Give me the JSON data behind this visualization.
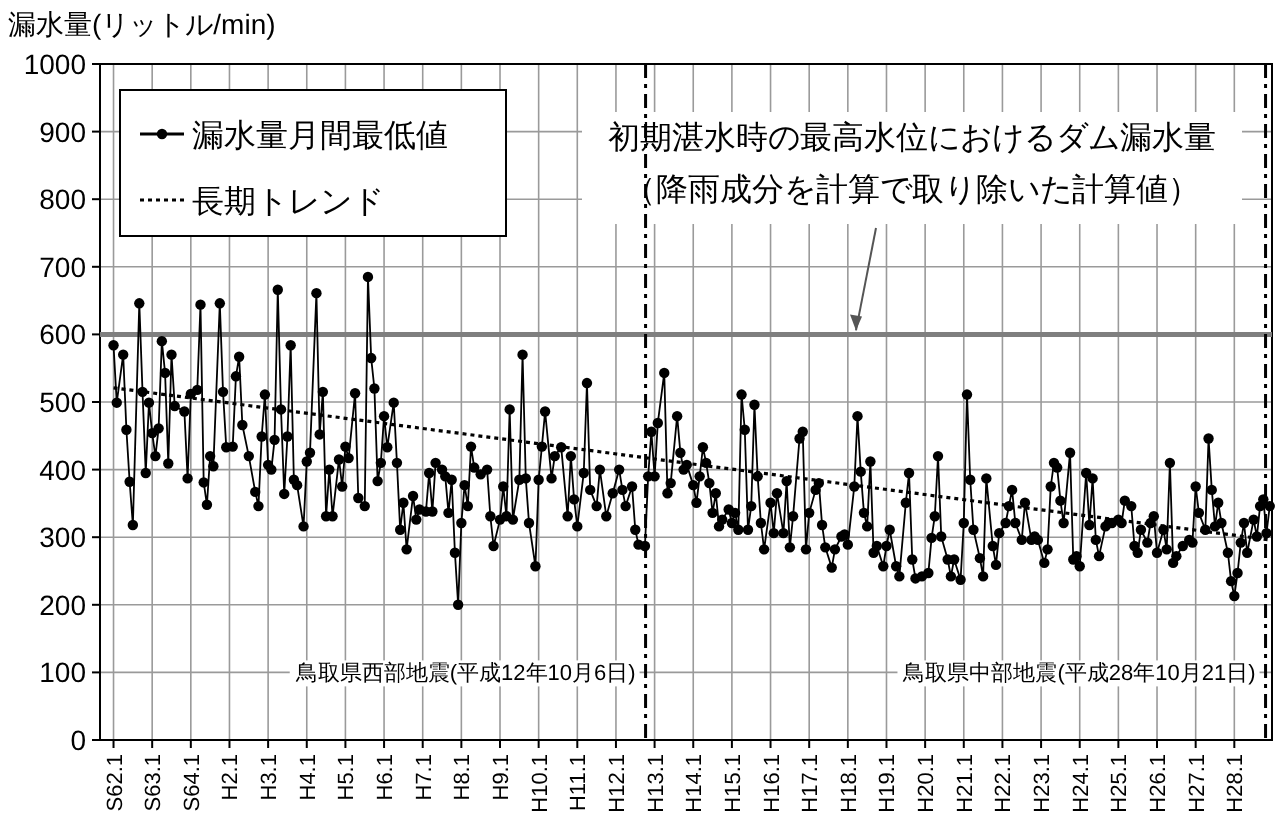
{
  "chart_data": {
    "type": "line",
    "ylabel": "漏水量(リットル/min)",
    "ylim": [
      0,
      1000
    ],
    "yticks": [
      0,
      100,
      200,
      300,
      400,
      500,
      600,
      700,
      800,
      900,
      1000
    ],
    "categories": [
      "S62.1",
      null,
      null,
      null,
      null,
      null,
      null,
      null,
      null,
      null,
      null,
      null,
      "S63.1",
      null,
      null,
      null,
      null,
      null,
      null,
      null,
      null,
      null,
      null,
      null,
      "S64.1",
      null,
      null,
      null,
      null,
      null,
      null,
      null,
      null,
      null,
      null,
      null,
      "H2.1",
      null,
      null,
      null,
      null,
      null,
      null,
      null,
      null,
      null,
      null,
      null,
      "H3.1",
      null,
      null,
      null,
      null,
      null,
      null,
      null,
      null,
      null,
      null,
      null,
      "H4.1",
      null,
      null,
      null,
      null,
      null,
      null,
      null,
      null,
      null,
      null,
      null,
      "H5.1",
      null,
      null,
      null,
      null,
      null,
      null,
      null,
      null,
      null,
      null,
      null,
      "H6.1",
      null,
      null,
      null,
      null,
      null,
      null,
      null,
      null,
      null,
      null,
      null,
      "H7.1",
      null,
      null,
      null,
      null,
      null,
      null,
      null,
      null,
      null,
      null,
      null,
      "H8.1",
      null,
      null,
      null,
      null,
      null,
      null,
      null,
      null,
      null,
      null,
      null,
      "H9.1",
      null,
      null,
      null,
      null,
      null,
      null,
      null,
      null,
      null,
      null,
      null,
      "H10.1",
      null,
      null,
      null,
      null,
      null,
      null,
      null,
      null,
      null,
      null,
      null,
      "H11.1",
      null,
      null,
      null,
      null,
      null,
      null,
      null,
      null,
      null,
      null,
      null,
      "H12.1",
      null,
      null,
      null,
      null,
      null,
      null,
      null,
      null,
      null,
      null,
      null,
      "H13.1",
      null,
      null,
      null,
      null,
      null,
      null,
      null,
      null,
      null,
      null,
      null,
      "H14.1",
      null,
      null,
      null,
      null,
      null,
      null,
      null,
      null,
      null,
      null,
      null,
      "H15.1",
      null,
      null,
      null,
      null,
      null,
      null,
      null,
      null,
      null,
      null,
      null,
      "H16.1",
      null,
      null,
      null,
      null,
      null,
      null,
      null,
      null,
      null,
      null,
      null,
      "H17.1",
      null,
      null,
      null,
      null,
      null,
      null,
      null,
      null,
      null,
      null,
      null,
      "H18.1",
      null,
      null,
      null,
      null,
      null,
      null,
      null,
      null,
      null,
      null,
      null,
      "H19.1",
      null,
      null,
      null,
      null,
      null,
      null,
      null,
      null,
      null,
      null,
      null,
      "H20.1",
      null,
      null,
      null,
      null,
      null,
      null,
      null,
      null,
      null,
      null,
      null,
      "H21.1",
      null,
      null,
      null,
      null,
      null,
      null,
      null,
      null,
      null,
      null,
      null,
      "H22.1",
      null,
      null,
      null,
      null,
      null,
      null,
      null,
      null,
      null,
      null,
      null,
      "H23.1",
      null,
      null,
      null,
      null,
      null,
      null,
      null,
      null,
      null,
      null,
      null,
      "H24.1",
      null,
      null,
      null,
      null,
      null,
      null,
      null,
      null,
      null,
      null,
      null,
      "H25.1",
      null,
      null,
      null,
      null,
      null,
      null,
      null,
      null,
      null,
      null,
      null,
      "H26.1",
      null,
      null,
      null,
      null,
      null,
      null,
      null,
      null,
      null,
      null,
      null,
      "H27.1",
      null,
      null,
      null,
      null,
      null,
      null,
      null,
      null,
      null,
      null,
      null,
      "H28.1",
      null,
      null,
      null,
      null,
      null,
      null,
      null,
      null,
      null,
      null,
      null
    ],
    "grid": true,
    "legend": "top left",
    "series": [
      {
        "name": "漏水量月間最低値",
        "color": "#000000",
        "marker": "circle",
        "line_style": "solid",
        "values": [
          584,
          499,
          null,
          570,
          459,
          382,
          318,
          null,
          646,
          515,
          395,
          499,
          454,
          420,
          461,
          590,
          543,
          409,
          570,
          494,
          null,
          null,
          486,
          387,
          512,
          null,
          518,
          644,
          381,
          348,
          420,
          405,
          null,
          646,
          515,
          433,
          null,
          434,
          538,
          567,
          466,
          null,
          420,
          null,
          367,
          346,
          449,
          511,
          407,
          400,
          444,
          666,
          489,
          364,
          449,
          584,
          385,
          377,
          null,
          316,
          412,
          425,
          null,
          661,
          452,
          515,
          331,
          400,
          331,
          null,
          415,
          375,
          434,
          417,
          null,
          513,
          358,
          null,
          346,
          685,
          565,
          520,
          383,
          410,
          479,
          433,
          null,
          499,
          410,
          311,
          351,
          282,
          null,
          361,
          326,
          341,
          null,
          338,
          395,
          338,
          410,
          null,
          400,
          390,
          336,
          385,
          277,
          200,
          321,
          377,
          346,
          434,
          403,
          null,
          393,
          null,
          400,
          331,
          287,
          null,
          326,
          375,
          331,
          489,
          326,
          null,
          385,
          570,
          387,
          321,
          null,
          257,
          385,
          434,
          486,
          null,
          387,
          420,
          null,
          433,
          null,
          331,
          420,
          356,
          316,
          null,
          395,
          528,
          370,
          null,
          346,
          400,
          null,
          331,
          null,
          365,
          null,
          400,
          370,
          346,
          null,
          375,
          311,
          289,
          null,
          287,
          390,
          456,
          390,
          469,
          null,
          543,
          365,
          380,
          null,
          479,
          425,
          400,
          407,
          null,
          377,
          351,
          390,
          433,
          410,
          380,
          336,
          365,
          316,
          326,
          null,
          341,
          321,
          336,
          311,
          511,
          459,
          311,
          346,
          496,
          390,
          321,
          282,
          null,
          351,
          306,
          365,
          null,
          306,
          383,
          285,
          331,
          null,
          446,
          456,
          282,
          336,
          null,
          370,
          380,
          318,
          285,
          null,
          255,
          282,
          null,
          301,
          304,
          289,
          null,
          375,
          479,
          397,
          336,
          316,
          412,
          277,
          287,
          null,
          257,
          287,
          311,
          null,
          257,
          242,
          null,
          351,
          395,
          267,
          239,
          null,
          242,
          null,
          247,
          299,
          331,
          420,
          301,
          null,
          267,
          242,
          267,
          null,
          237,
          321,
          511,
          385,
          311,
          null,
          269,
          242,
          387,
          null,
          287,
          259,
          306,
          null,
          321,
          346,
          370,
          321,
          null,
          296,
          351,
          null,
          296,
          301,
          296,
          null,
          262,
          282,
          375,
          410,
          403,
          354,
          321,
          null,
          425,
          267,
          272,
          257,
          null,
          395,
          318,
          387,
          296,
          272,
          null,
          316,
          321,
          321,
          null,
          326,
          321,
          354,
          null,
          346,
          287,
          277,
          311,
          null,
          292,
          321,
          331,
          277,
          null,
          311,
          282,
          410,
          262,
          272,
          null,
          287,
          null,
          296,
          292,
          375,
          336,
          null,
          311,
          446,
          370,
          316,
          351,
          321,
          null,
          277,
          235,
          213,
          247,
          292,
          321,
          277,
          null,
          326,
          301,
          346,
          356,
          306,
          346
        ]
      },
      {
        "name": "長期トレンド",
        "color": "#000000",
        "marker": "none",
        "line_style": "dotted",
        "values": [
          521,
          null,
          null,
          null,
          null,
          null,
          null,
          null,
          null,
          null,
          null,
          null,
          null,
          null,
          null,
          null,
          null,
          null,
          null,
          null,
          null,
          null,
          null,
          null,
          null,
          null,
          null,
          null,
          null,
          null,
          null,
          null,
          null,
          null,
          null,
          null,
          null,
          null,
          null,
          null,
          null,
          null,
          null,
          null,
          null,
          null,
          null,
          null,
          null,
          null,
          null,
          null,
          null,
          null,
          null,
          null,
          null,
          null,
          null,
          null,
          null,
          null,
          null,
          null,
          null,
          null,
          null,
          null,
          null,
          null,
          null,
          null,
          null,
          null,
          null,
          null,
          null,
          null,
          null,
          null,
          null,
          null,
          null,
          null,
          null,
          null,
          null,
          null,
          null,
          null,
          null,
          null,
          null,
          null,
          null,
          null,
          null,
          null,
          null,
          null,
          null,
          null,
          null,
          null,
          null,
          null,
          null,
          null,
          null,
          null,
          null,
          null,
          null,
          null,
          null,
          null,
          null,
          null,
          null,
          null,
          null,
          null,
          null,
          null,
          null,
          null,
          null,
          null,
          null,
          null,
          null,
          null,
          null,
          null,
          null,
          null,
          null,
          null,
          null,
          null,
          null,
          null,
          null,
          null,
          null,
          null,
          null,
          null,
          null,
          null,
          null,
          null,
          null,
          null,
          null,
          null,
          null,
          null,
          null,
          null,
          null,
          null,
          null,
          null,
          null,
          null,
          null,
          null,
          null,
          null,
          null,
          null,
          null,
          null,
          null,
          null,
          null,
          null,
          null,
          null,
          null,
          null,
          null,
          null,
          null,
          null,
          null,
          null,
          null,
          null,
          null,
          null,
          null,
          null,
          null,
          null,
          null,
          null,
          null,
          null,
          null,
          null,
          null,
          null,
          null,
          null,
          null,
          null,
          null,
          null,
          null,
          null,
          null,
          null,
          null,
          null,
          null,
          null,
          null,
          null,
          null,
          null,
          null,
          null,
          null,
          null,
          null,
          null,
          null,
          null,
          null,
          null,
          null,
          null,
          null,
          null,
          null,
          null,
          null,
          null,
          null,
          null,
          null,
          null,
          null,
          null,
          null,
          null,
          null,
          null,
          null,
          null,
          null,
          null,
          null,
          null,
          null,
          null,
          null,
          null,
          null,
          null,
          null,
          null,
          null,
          null,
          null,
          null,
          null,
          null,
          null,
          null,
          null,
          null,
          null,
          null,
          null,
          null,
          null,
          null,
          null,
          null,
          null,
          null,
          null,
          null,
          null,
          null,
          null,
          null,
          null,
          null,
          null,
          null,
          null,
          null,
          null,
          null,
          null,
          null,
          null,
          null,
          null,
          null,
          null,
          null,
          null,
          null,
          null,
          null,
          null,
          null,
          null,
          null,
          null,
          null,
          null,
          null,
          null,
          null,
          null,
          null,
          null,
          null,
          null,
          null,
          null,
          null,
          null,
          null,
          null,
          null,
          null,
          null,
          null,
          null,
          null,
          null,
          null,
          null,
          null,
          null,
          null,
          null,
          null,
          null,
          null,
          null,
          null,
          null,
          null,
          null,
          null,
          null,
          null,
          null,
          null,
          null,
          null,
          296
        ]
      }
    ],
    "ref_lines": [
      {
        "axis": "y",
        "value": 600,
        "label": "初期湛水時の最高水位におけるダム漏水量（降雨成分を計算で取り除いた計算値）",
        "color": "#7f7f7f",
        "line_style": "solid"
      }
    ],
    "annotations": [
      "鳥取県西部地震(平成12年10月6日)",
      "鳥取県中部地震(平成28年10月21日)"
    ]
  }
}
